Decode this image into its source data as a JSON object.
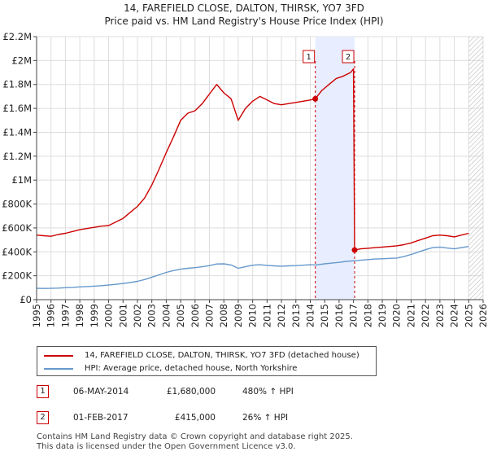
{
  "title_line1": "14, FAREFIELD CLOSE, DALTON, THIRSK, YO7 3FD",
  "title_line2": "Price paid vs. HM Land Registry's House Price Index (HPI)",
  "colors": {
    "red": "#cc0000",
    "blue": "#6699cc",
    "shade": "#e8eeff",
    "grid": "#dddddd"
  },
  "chart_data": {
    "type": "line",
    "title": "14, FAREFIELD CLOSE, DALTON, THIRSK, YO7 3FD",
    "subtitle": "Price paid vs. HM Land Registry's House Price Index (HPI)",
    "xlabel": "",
    "ylabel": "",
    "xlim": [
      1995,
      2026
    ],
    "ylim": [
      0,
      2200000
    ],
    "grid": true,
    "x_ticks": [
      1995,
      1996,
      1997,
      1998,
      1999,
      2000,
      2001,
      2002,
      2003,
      2004,
      2005,
      2006,
      2007,
      2008,
      2009,
      2010,
      2011,
      2012,
      2013,
      2014,
      2015,
      2016,
      2017,
      2018,
      2019,
      2020,
      2021,
      2022,
      2023,
      2024,
      2025,
      2026
    ],
    "y_ticks": [
      {
        "value": 0,
        "label": "£0"
      },
      {
        "value": 200000,
        "label": "£200K"
      },
      {
        "value": 400000,
        "label": "£400K"
      },
      {
        "value": 600000,
        "label": "£600K"
      },
      {
        "value": 800000,
        "label": "£800K"
      },
      {
        "value": 1000000,
        "label": "£1M"
      },
      {
        "value": 1200000,
        "label": "£1.2M"
      },
      {
        "value": 1400000,
        "label": "£1.4M"
      },
      {
        "value": 1600000,
        "label": "£1.6M"
      },
      {
        "value": 1800000,
        "label": "£1.8M"
      },
      {
        "value": 2000000,
        "label": "£2M"
      },
      {
        "value": 2200000,
        "label": "£2.2M"
      }
    ],
    "shaded_region": [
      2014.35,
      2017.08
    ],
    "future_hatch_from": 2025.0,
    "series": [
      {
        "name": "14, FAREFIELD CLOSE, DALTON, THIRSK, YO7 3FD (detached house)",
        "color": "#cc0000",
        "points": [
          [
            1995.0,
            540000
          ],
          [
            1995.5,
            535000
          ],
          [
            1996.0,
            530000
          ],
          [
            1996.5,
            545000
          ],
          [
            1997.0,
            555000
          ],
          [
            1997.5,
            570000
          ],
          [
            1998.0,
            585000
          ],
          [
            1998.5,
            595000
          ],
          [
            1999.0,
            605000
          ],
          [
            1999.5,
            615000
          ],
          [
            2000.0,
            620000
          ],
          [
            2000.5,
            650000
          ],
          [
            2001.0,
            680000
          ],
          [
            2001.5,
            730000
          ],
          [
            2002.0,
            780000
          ],
          [
            2002.5,
            850000
          ],
          [
            2003.0,
            960000
          ],
          [
            2003.5,
            1090000
          ],
          [
            2004.0,
            1230000
          ],
          [
            2004.5,
            1360000
          ],
          [
            2005.0,
            1500000
          ],
          [
            2005.5,
            1560000
          ],
          [
            2006.0,
            1580000
          ],
          [
            2006.5,
            1640000
          ],
          [
            2007.0,
            1720000
          ],
          [
            2007.5,
            1800000
          ],
          [
            2008.0,
            1730000
          ],
          [
            2008.5,
            1680000
          ],
          [
            2009.0,
            1500000
          ],
          [
            2009.5,
            1600000
          ],
          [
            2010.0,
            1660000
          ],
          [
            2010.5,
            1700000
          ],
          [
            2011.0,
            1670000
          ],
          [
            2011.5,
            1640000
          ],
          [
            2012.0,
            1630000
          ],
          [
            2012.5,
            1640000
          ],
          [
            2013.0,
            1650000
          ],
          [
            2013.5,
            1660000
          ],
          [
            2014.0,
            1670000
          ],
          [
            2014.35,
            1680000
          ],
          [
            2014.8,
            1750000
          ],
          [
            2015.3,
            1800000
          ],
          [
            2015.8,
            1850000
          ],
          [
            2016.3,
            1870000
          ],
          [
            2016.8,
            1900000
          ],
          [
            2017.0,
            1930000
          ],
          [
            2017.08,
            415000
          ],
          [
            2017.5,
            425000
          ],
          [
            2018.0,
            430000
          ],
          [
            2018.5,
            435000
          ],
          [
            2019.0,
            440000
          ],
          [
            2019.5,
            445000
          ],
          [
            2020.0,
            450000
          ],
          [
            2020.5,
            460000
          ],
          [
            2021.0,
            475000
          ],
          [
            2021.5,
            495000
          ],
          [
            2022.0,
            515000
          ],
          [
            2022.5,
            535000
          ],
          [
            2023.0,
            540000
          ],
          [
            2023.5,
            535000
          ],
          [
            2024.0,
            525000
          ],
          [
            2024.5,
            540000
          ],
          [
            2025.0,
            555000
          ]
        ]
      },
      {
        "name": "HPI: Average price, detached house, North Yorkshire",
        "color": "#6699cc",
        "points": [
          [
            1995.0,
            95000
          ],
          [
            1995.5,
            94000
          ],
          [
            1996.0,
            95000
          ],
          [
            1996.5,
            97000
          ],
          [
            1997.0,
            100000
          ],
          [
            1997.5,
            103000
          ],
          [
            1998.0,
            107000
          ],
          [
            1998.5,
            110000
          ],
          [
            1999.0,
            113000
          ],
          [
            1999.5,
            117000
          ],
          [
            2000.0,
            122000
          ],
          [
            2000.5,
            128000
          ],
          [
            2001.0,
            135000
          ],
          [
            2001.5,
            143000
          ],
          [
            2002.0,
            153000
          ],
          [
            2002.5,
            168000
          ],
          [
            2003.0,
            188000
          ],
          [
            2003.5,
            208000
          ],
          [
            2004.0,
            228000
          ],
          [
            2004.5,
            243000
          ],
          [
            2005.0,
            255000
          ],
          [
            2005.5,
            262000
          ],
          [
            2006.0,
            268000
          ],
          [
            2006.5,
            275000
          ],
          [
            2007.0,
            285000
          ],
          [
            2007.5,
            298000
          ],
          [
            2008.0,
            300000
          ],
          [
            2008.5,
            290000
          ],
          [
            2009.0,
            262000
          ],
          [
            2009.5,
            275000
          ],
          [
            2010.0,
            288000
          ],
          [
            2010.5,
            292000
          ],
          [
            2011.0,
            287000
          ],
          [
            2011.5,
            283000
          ],
          [
            2012.0,
            280000
          ],
          [
            2012.5,
            283000
          ],
          [
            2013.0,
            285000
          ],
          [
            2013.5,
            288000
          ],
          [
            2014.0,
            292000
          ],
          [
            2014.35,
            290000
          ],
          [
            2015.0,
            300000
          ],
          [
            2015.5,
            306000
          ],
          [
            2016.0,
            312000
          ],
          [
            2016.5,
            320000
          ],
          [
            2017.0,
            325000
          ],
          [
            2017.5,
            330000
          ],
          [
            2018.0,
            335000
          ],
          [
            2018.5,
            340000
          ],
          [
            2019.0,
            342000
          ],
          [
            2019.5,
            345000
          ],
          [
            2020.0,
            348000
          ],
          [
            2020.5,
            360000
          ],
          [
            2021.0,
            378000
          ],
          [
            2021.5,
            398000
          ],
          [
            2022.0,
            418000
          ],
          [
            2022.5,
            435000
          ],
          [
            2023.0,
            440000
          ],
          [
            2023.5,
            432000
          ],
          [
            2024.0,
            425000
          ],
          [
            2024.5,
            435000
          ],
          [
            2025.0,
            445000
          ]
        ]
      }
    ],
    "markers": [
      {
        "label": "1",
        "x": 2014.35,
        "y": 1680000
      },
      {
        "label": "2",
        "x": 2017.08,
        "y": 415000
      }
    ]
  },
  "legend": {
    "property_label": "14, FAREFIELD CLOSE, DALTON, THIRSK, YO7 3FD (detached house)",
    "hpi_label": "HPI: Average price, detached house, North Yorkshire"
  },
  "transactions": [
    {
      "num": "1",
      "date": "06-MAY-2014",
      "price": "£1,680,000",
      "hpi": "480% ↑ HPI"
    },
    {
      "num": "2",
      "date": "01-FEB-2017",
      "price": "£415,000",
      "hpi": "26% ↑ HPI"
    }
  ],
  "footer": {
    "line1": "Contains HM Land Registry data © Crown copyright and database right 2025.",
    "line2": "This data is licensed under the Open Government Licence v3.0."
  }
}
